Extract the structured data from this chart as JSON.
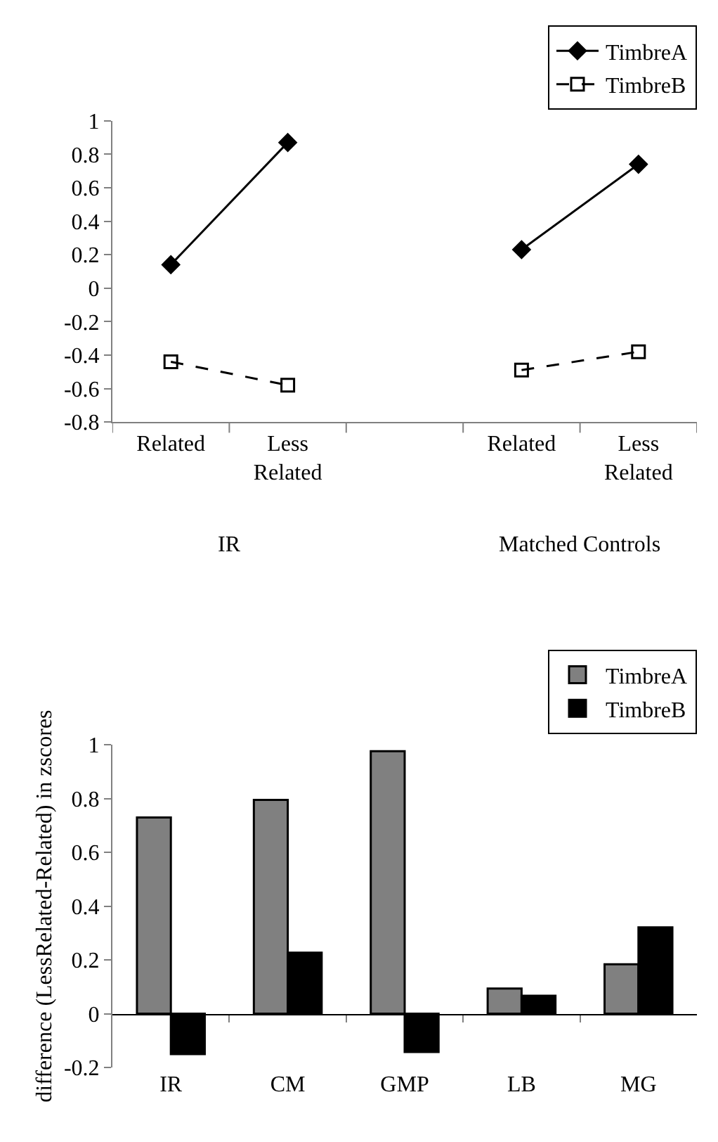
{
  "chart_data": [
    {
      "type": "line",
      "categories": [
        "Related",
        "Less Related",
        null,
        "Related",
        "Less Related"
      ],
      "series": [
        {
          "name": "TimbreA",
          "color": "#000000",
          "marker": "diamond",
          "line_style": "solid",
          "values": [
            0.14,
            0.87,
            null,
            0.23,
            0.74
          ]
        },
        {
          "name": "TimbreB",
          "color": "#000000",
          "marker": "square",
          "line_style": "dashed",
          "values": [
            -0.44,
            -0.58,
            null,
            -0.49,
            -0.38
          ]
        }
      ],
      "ylim": [
        -0.8,
        1
      ],
      "yticks": [
        -0.8,
        -0.6,
        -0.4,
        -0.2,
        0,
        0.2,
        0.4,
        0.6,
        0.8,
        1
      ],
      "annotations": [
        "IR",
        "Matched Controls"
      ],
      "legend": "top right"
    },
    {
      "type": "bar",
      "categories": [
        "IR",
        "CM",
        "GMP",
        "LB",
        "MG"
      ],
      "ylabel": "difference (LessRelated-Related) in zscores",
      "series": [
        {
          "name": "TimbreA",
          "color": "#808080",
          "values": [
            0.73,
            0.795,
            0.976,
            0.094,
            0.184
          ]
        },
        {
          "name": "TimbreB",
          "color": "#000000",
          "values": [
            -0.15,
            0.227,
            -0.142,
            0.067,
            0.321
          ]
        }
      ],
      "ylim": [
        -0.2,
        1
      ],
      "yticks": [
        -0.2,
        0,
        0.2,
        0.4,
        0.6,
        0.8,
        1
      ],
      "legend": "top right"
    }
  ]
}
